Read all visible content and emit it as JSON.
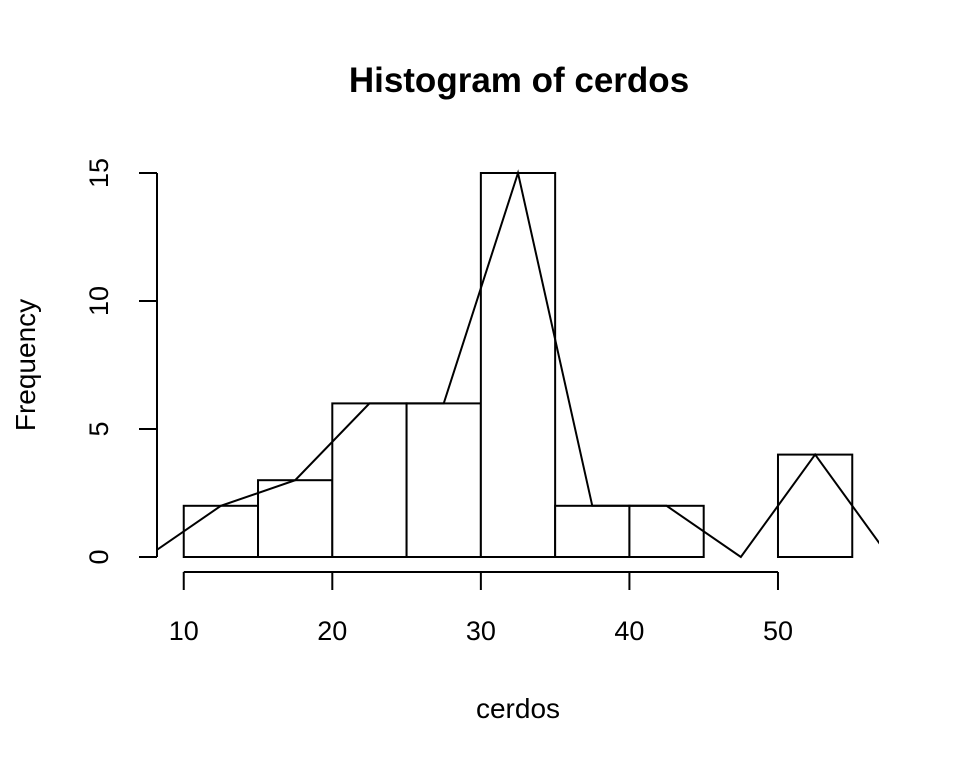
{
  "chart_data": {
    "type": "bar",
    "title": "Histogram of cerdos",
    "xlabel": "cerdos",
    "ylabel": "Frequency",
    "bins": [
      {
        "start": 10,
        "end": 15,
        "count": 2
      },
      {
        "start": 15,
        "end": 20,
        "count": 3
      },
      {
        "start": 20,
        "end": 25,
        "count": 6
      },
      {
        "start": 25,
        "end": 30,
        "count": 6
      },
      {
        "start": 30,
        "end": 35,
        "count": 15
      },
      {
        "start": 35,
        "end": 40,
        "count": 2
      },
      {
        "start": 40,
        "end": 45,
        "count": 2
      },
      {
        "start": 45,
        "end": 50,
        "count": 0
      },
      {
        "start": 50,
        "end": 55,
        "count": 4
      }
    ],
    "frequency_polygon": {
      "x": [
        7.5,
        12.5,
        17.5,
        22.5,
        27.5,
        32.5,
        37.5,
        42.5,
        47.5,
        52.5,
        57.5
      ],
      "y": [
        0,
        2,
        3,
        6,
        6,
        15,
        2,
        2,
        0,
        4,
        0
      ]
    },
    "x_ticks": [
      10,
      20,
      30,
      40,
      50
    ],
    "y_ticks": [
      0,
      5,
      10,
      15
    ],
    "xlim": [
      8.2,
      56.8
    ],
    "ylim": [
      0,
      15
    ],
    "grid": false
  }
}
